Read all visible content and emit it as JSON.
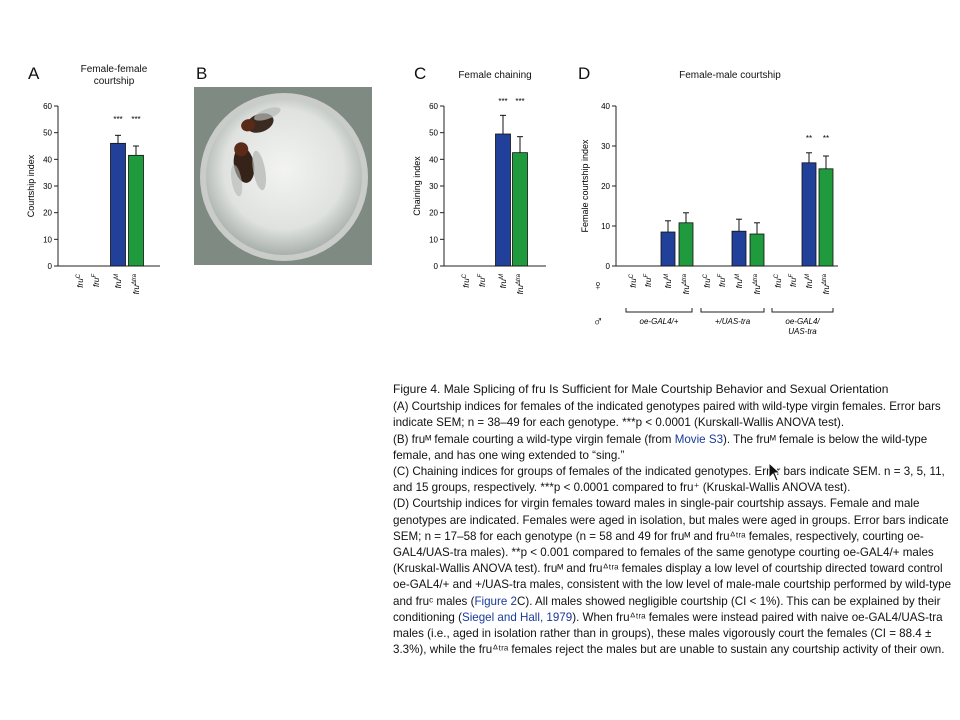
{
  "panels": {
    "A": {
      "letter": "A",
      "title_line1": "Female-female",
      "title_line2": "courtship"
    },
    "B": {
      "letter": "B"
    },
    "C": {
      "letter": "C",
      "title": "Female chaining"
    },
    "D": {
      "letter": "D",
      "title": "Female-male courtship"
    }
  },
  "chart_data": [
    {
      "panel": "A",
      "type": "bar",
      "ylabel": "Courtship index",
      "ylim": [
        0,
        60
      ],
      "yticks": [
        0,
        10,
        20,
        30,
        40,
        50,
        60
      ],
      "categories": [
        "fru^C",
        "fru^F",
        "fru^M",
        "fru^Δtra"
      ],
      "values": [
        0,
        0,
        46,
        41.5
      ],
      "errors": [
        0,
        0,
        3,
        3.5
      ],
      "colors": [
        "#21409a",
        "#21409a",
        "#21409a",
        "#1f9a3c"
      ],
      "significance": [
        "",
        "",
        "***",
        "***"
      ]
    },
    {
      "panel": "C",
      "type": "bar",
      "ylabel": "Chaining index",
      "ylim": [
        0,
        60
      ],
      "yticks": [
        0,
        10,
        20,
        30,
        40,
        50,
        60
      ],
      "categories": [
        "fru^C",
        "fru^F",
        "fru^M",
        "fru^Δtra"
      ],
      "values": [
        0,
        0,
        49.5,
        42.5
      ],
      "errors": [
        0,
        0,
        7,
        6
      ],
      "colors": [
        "#21409a",
        "#21409a",
        "#21409a",
        "#1f9a3c"
      ],
      "significance": [
        "",
        "",
        "***",
        "***"
      ]
    },
    {
      "panel": "D",
      "type": "bar",
      "ylabel": "Female courtship index",
      "ylim": [
        0,
        40
      ],
      "yticks": [
        0,
        10,
        20,
        30,
        40
      ],
      "categories": [
        "fru^C",
        "fru^F",
        "fru^M",
        "fru^Δtra",
        "fru^C",
        "fru^F",
        "fru^M",
        "fru^Δtra",
        "fru^C",
        "fru^F",
        "fru^M",
        "fru^Δtra"
      ],
      "values": [
        0,
        0,
        8.5,
        10.8,
        0,
        0,
        8.7,
        8,
        0,
        0,
        25.8,
        24.3
      ],
      "errors": [
        0,
        0,
        2.8,
        2.5,
        0,
        0,
        3,
        2.8,
        0,
        0,
        2.5,
        3.2
      ],
      "colors": [
        "#21409a",
        "#21409a",
        "#21409a",
        "#1f9a3c",
        "#21409a",
        "#21409a",
        "#21409a",
        "#1f9a3c",
        "#21409a",
        "#21409a",
        "#21409a",
        "#1f9a3c"
      ],
      "significance": [
        "",
        "",
        "",
        "",
        "",
        "",
        "",
        "",
        "",
        "",
        "**",
        "**"
      ],
      "female_symbol": "♀",
      "male_symbol": "♂",
      "male_groups": [
        "oe-GAL4/+",
        "+/UAS-tra",
        "oe-GAL4/\nUAS-tra"
      ]
    }
  ],
  "caption": {
    "title": "Figure 4. Male Splicing of fru Is Sufficient for Male Courtship Behavior and Sexual Orientation",
    "A": "(A) Courtship indices for females of the indicated genotypes paired with wild-type virgin females. Error bars indicate SEM; n = 38–49 for each genotype. ***p < 0.0001 (Kurskall-Wallis ANOVA test).",
    "B_pre": "(B) fruᴹ female courting a wild-type virgin female (from ",
    "B_link": "Movie S3",
    "B_post": "). The fruᴹ female is below the wild-type female, and has one wing extended to “sing.”",
    "C": "(C) Chaining indices for groups of females of the indicated genotypes. Error bars indicate SEM. n = 3, 5, 11, and 15 groups, respectively. ***p < 0.0001 compared to fru⁺ (Kruskal-Wallis ANOVA test).",
    "D_1": "(D) Courtship indices for virgin females toward males in single-pair courtship assays. Female and male genotypes are indicated. Females were aged in isolation, but males were aged in groups. Error bars indicate SEM; n = 17–58 for each genotype (n = 58 and 49 for fruᴹ and fruᐞᵗʳᵃ females, respectively, courting oe-GAL4/UAS-tra males). **p < 0.001 compared to females of the same genotype courting oe-GAL4/+ males (Kruskal-Wallis ANOVA test). fruᴹ and fruᐞᵗʳᵃ females display a low level of courtship directed toward control oe-GAL4/+ and +/UAS-tra males, consistent with the low level of male-male courtship performed by wild-type and fruᶜ males (",
    "D_link1": "Figure 2",
    "D_2": "C). All males showed negligible courtship (CI < 1%). This can be explained by their conditioning (",
    "D_link2": "Siegel and Hall, 1979",
    "D_3": "). When fruᐞᵗʳᵃ females were instead paired with naive oe-GAL4/UAS-tra males (i.e., aged in isolation rather than in groups), these males vigorously court the females (CI = 88.4 ± 3.3%), while the fruᐞᵗʳᵃ females reject the males but are unable to sustain any courtship activity of their own."
  }
}
